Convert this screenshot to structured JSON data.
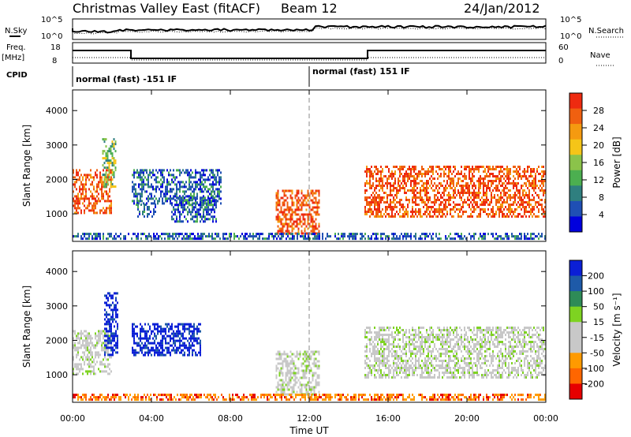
{
  "header": {
    "station": "Christmas Valley East (fitACF)",
    "beam": "Beam 12",
    "date": "24/Jan/2012"
  },
  "strip_labels": {
    "nsky": "N.Sky",
    "nsearch": "N.Search",
    "freq": "Freq.",
    "freq_unit": "[MHz]",
    "nave": "Nave",
    "cpid": "CPID",
    "nsky_ticks": [
      "10^5",
      "10^0"
    ],
    "nsearch_ticks": [
      "10^5",
      "10^0"
    ],
    "freq_ticks": [
      "18",
      "8"
    ],
    "nave_ticks": [
      "60",
      "0"
    ]
  },
  "cpid_segments": [
    {
      "label": "normal (fast) -151 IF",
      "start": "00:00",
      "end": "12:00"
    },
    {
      "label": "normal (fast) 151 IF",
      "start": "12:00",
      "end": "24:00"
    }
  ],
  "colors": {
    "power": [
      "#0000dd",
      "#1f4fb4",
      "#2f7f7f",
      "#4caf50",
      "#8bc34a",
      "#f5c518",
      "#f59a10",
      "#f06010",
      "#ee2a10"
    ],
    "velocity": [
      "#0b1fd6",
      "#1e5aa8",
      "#2e8b57",
      "#7ed321",
      "#c8c8c8",
      "#c8c8c8",
      "#ff9a00",
      "#ff6600",
      "#e60000"
    ]
  },
  "chart_data": [
    {
      "type": "heatmap",
      "name": "power",
      "ylabel": "Slant Range [km]",
      "ylim": [
        200,
        4600
      ],
      "yticks": [
        1000,
        2000,
        3000,
        4000
      ],
      "xlim": [
        0,
        24
      ],
      "colorbar": {
        "label": "Power [dB]",
        "ticks": [
          "28",
          "24",
          "20",
          "16",
          "12",
          "8",
          "4"
        ]
      },
      "regions": [
        {
          "t0": 0.0,
          "t1": 2.0,
          "r0": 1000,
          "r1": 2300,
          "level": "high"
        },
        {
          "t0": 1.5,
          "t1": 2.2,
          "r0": 1800,
          "r1": 3200,
          "level": "mid"
        },
        {
          "t0": 3.0,
          "t1": 7.5,
          "r0": 1300,
          "r1": 2300,
          "level": "low"
        },
        {
          "t0": 3.2,
          "t1": 4.2,
          "r0": 900,
          "r1": 1300,
          "level": "low"
        },
        {
          "t0": 5.0,
          "t1": 7.3,
          "r0": 800,
          "r1": 1500,
          "level": "low"
        },
        {
          "t0": 10.3,
          "t1": 12.5,
          "r0": 400,
          "r1": 1700,
          "level": "high"
        },
        {
          "t0": 14.8,
          "t1": 24.0,
          "r0": 900,
          "r1": 2400,
          "level": "high"
        },
        {
          "t0": 0.0,
          "t1": 24.0,
          "r0": 250,
          "r1": 450,
          "level": "low"
        }
      ]
    },
    {
      "type": "heatmap",
      "name": "velocity",
      "ylabel": "Slant Range [km]",
      "ylim": [
        200,
        4600
      ],
      "yticks": [
        1000,
        2000,
        3000,
        4000
      ],
      "xlim": [
        0,
        24
      ],
      "xlabel": "Time UT",
      "xticks": [
        "00:00",
        "04:00",
        "08:00",
        "12:00",
        "16:00",
        "20:00",
        "00:00"
      ],
      "colorbar": {
        "label": "Velocity [m s⁻¹]",
        "ticks": [
          "200",
          "100",
          "50",
          "15",
          "-15",
          "-50",
          "-100",
          "-200"
        ]
      },
      "regions": [
        {
          "t0": 0.0,
          "t1": 2.0,
          "r0": 1000,
          "r1": 2300,
          "level": "neutral"
        },
        {
          "t0": 1.6,
          "t1": 2.3,
          "r0": 1600,
          "r1": 3400,
          "level": "toward"
        },
        {
          "t0": 3.0,
          "t1": 6.5,
          "r0": 1600,
          "r1": 2500,
          "level": "toward"
        },
        {
          "t0": 10.3,
          "t1": 12.5,
          "r0": 400,
          "r1": 1700,
          "level": "neutral"
        },
        {
          "t0": 14.8,
          "t1": 24.0,
          "r0": 900,
          "r1": 2400,
          "level": "neutral"
        },
        {
          "t0": 0.0,
          "t1": 24.0,
          "r0": 250,
          "r1": 450,
          "level": "away"
        }
      ]
    }
  ]
}
